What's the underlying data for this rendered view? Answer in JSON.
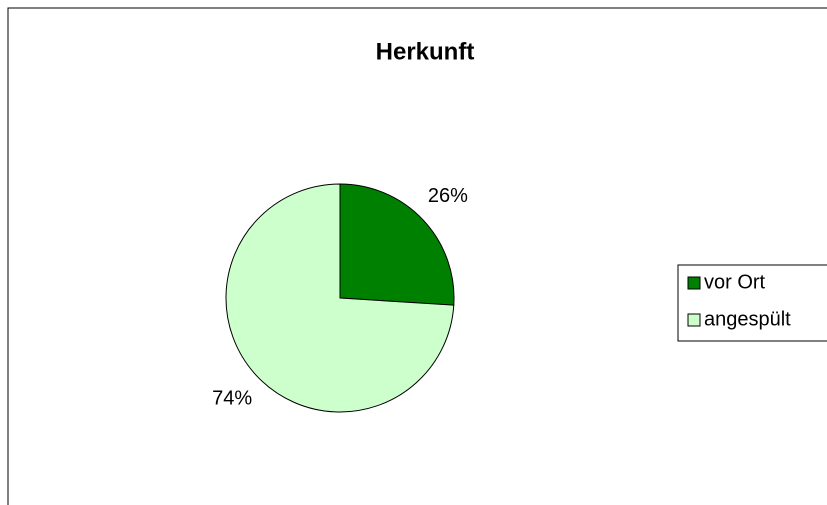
{
  "chart_data": {
    "type": "pie",
    "title": "Herkunft",
    "categories": [
      "vor Ort",
      "angespült"
    ],
    "values": [
      26,
      74
    ],
    "value_labels": [
      "26%",
      "74%"
    ],
    "colors": [
      "#008000",
      "#ccffcc"
    ],
    "legend": "right"
  }
}
